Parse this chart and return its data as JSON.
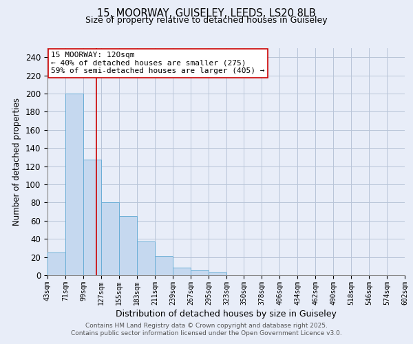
{
  "title_line1": "15, MOORWAY, GUISELEY, LEEDS, LS20 8LB",
  "title_line2": "Size of property relative to detached houses in Guiseley",
  "bar_heights": [
    25,
    200,
    127,
    80,
    65,
    37,
    21,
    8,
    5,
    3,
    0,
    0,
    0,
    0,
    0,
    0,
    0,
    0,
    0,
    0
  ],
  "bar_left_edges": [
    43,
    71,
    99,
    127,
    155,
    183,
    211,
    239,
    267,
    295,
    323,
    350,
    378,
    406,
    434,
    462,
    490,
    518,
    546,
    574
  ],
  "bin_width": 28,
  "bar_color": "#c5d8ef",
  "bar_edge_color": "#6aaed6",
  "vline_x": 120,
  "vline_color": "#cc0000",
  "xlabel": "Distribution of detached houses by size in Guiseley",
  "ylabel": "Number of detached properties",
  "ylim": [
    0,
    250
  ],
  "yticks": [
    0,
    20,
    40,
    60,
    80,
    100,
    120,
    140,
    160,
    180,
    200,
    220,
    240
  ],
  "xtick_labels": [
    "43sqm",
    "71sqm",
    "99sqm",
    "127sqm",
    "155sqm",
    "183sqm",
    "211sqm",
    "239sqm",
    "267sqm",
    "295sqm",
    "323sqm",
    "350sqm",
    "378sqm",
    "406sqm",
    "434sqm",
    "462sqm",
    "490sqm",
    "518sqm",
    "546sqm",
    "574sqm",
    "602sqm"
  ],
  "annotation_title": "15 MOORWAY: 120sqm",
  "annotation_line2": "← 40% of detached houses are smaller (275)",
  "annotation_line3": "59% of semi-detached houses are larger (405) →",
  "footer_line1": "Contains HM Land Registry data © Crown copyright and database right 2025.",
  "footer_line2": "Contains public sector information licensed under the Open Government Licence v3.0.",
  "background_color": "#e8edf8",
  "plot_background_color": "#e8edf8",
  "grid_color": "#b8c4d8"
}
